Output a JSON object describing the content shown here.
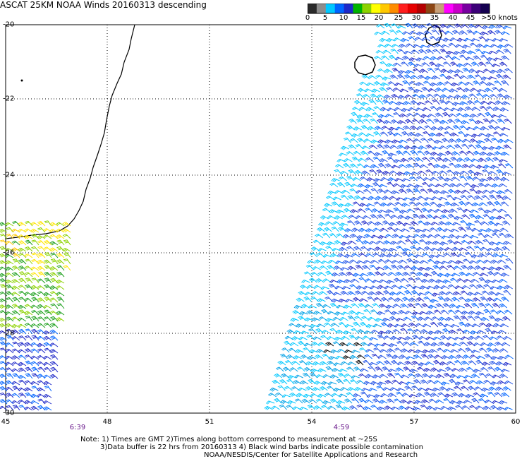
{
  "title": "ASCAT 25KM NOAA Winds 20160313 descending",
  "colorbar": {
    "labels": [
      "0",
      "5",
      "10",
      "15",
      "20",
      "25",
      "30",
      "35",
      "40",
      "45",
      ">50 knots"
    ],
    "colors": [
      "#2a2a2a",
      "#8c8c8c",
      "#00c8ff",
      "#0064ff",
      "#1e28c8",
      "#00b400",
      "#8cd200",
      "#ffff00",
      "#ffc800",
      "#ff8c00",
      "#ff1e1e",
      "#e60000",
      "#b40000",
      "#8c4614",
      "#c8a078",
      "#ff00ff",
      "#c800c8",
      "#7800a0",
      "#3c0078",
      "#140050"
    ]
  },
  "axes": {
    "lat_labels": [
      "-20",
      "-22",
      "-24",
      "-26",
      "-28",
      "-30"
    ],
    "lon_labels": [
      "45",
      "48",
      "51",
      "54",
      "57",
      "60"
    ]
  },
  "times": [
    "6:39",
    "4:59"
  ],
  "notes": {
    "line1": "Note: 1) Times are GMT 2)Times along bottom correspond to measurement at ~25S",
    "line2": "3)Data buffer is 22 hrs from 20160313 4) Black wind barbs indicate possible contamination",
    "line3": "NOAA/NESDIS/Center for Satellite Applications and Research"
  }
}
